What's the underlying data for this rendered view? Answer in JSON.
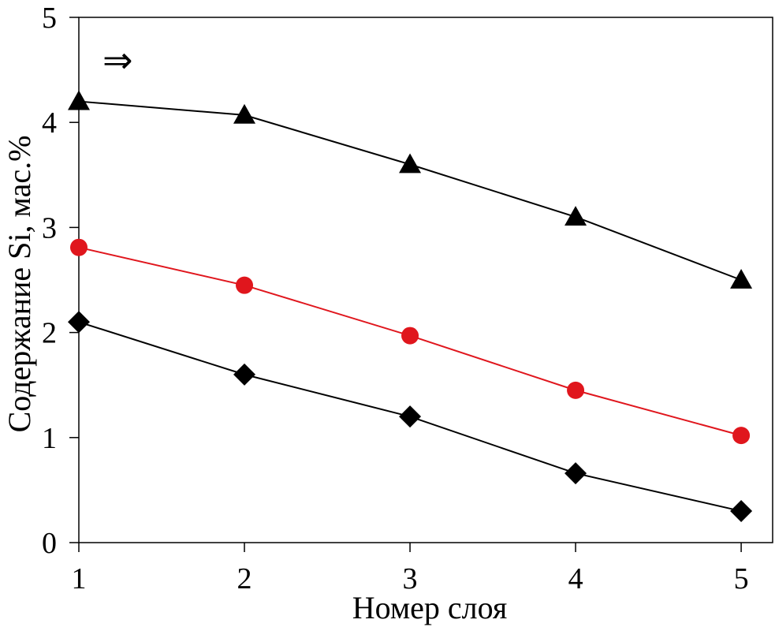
{
  "chart_data": {
    "type": "line",
    "title": "",
    "xlabel": "Номер слоя",
    "ylabel": "Содержание Si, мас.%",
    "x": [
      1,
      2,
      3,
      4,
      5
    ],
    "xlim": [
      1,
      5
    ],
    "ylim": [
      0,
      5
    ],
    "x_ticks": [
      "1",
      "2",
      "3",
      "4",
      "5"
    ],
    "y_ticks": [
      "0",
      "1",
      "2",
      "3",
      "4",
      "5"
    ],
    "grid": false,
    "legend": "none",
    "annotation": "⇒",
    "series": [
      {
        "marker": "triangle",
        "color": "#000000",
        "values": [
          4.2,
          4.07,
          3.6,
          3.1,
          2.5
        ]
      },
      {
        "marker": "circle",
        "color": "#e0161d",
        "values": [
          2.81,
          2.45,
          1.97,
          1.45,
          1.02
        ]
      },
      {
        "marker": "diamond",
        "color": "#000000",
        "values": [
          2.1,
          1.6,
          1.2,
          0.66,
          0.3
        ]
      }
    ]
  }
}
